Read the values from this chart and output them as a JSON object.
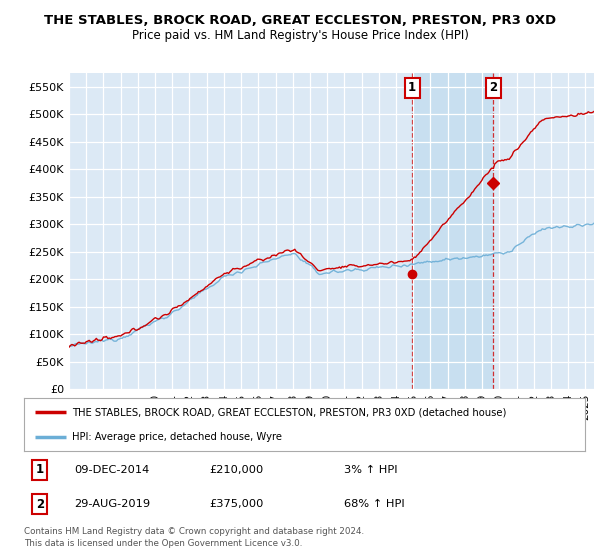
{
  "title": "THE STABLES, BROCK ROAD, GREAT ECCLESTON, PRESTON, PR3 0XD",
  "subtitle": "Price paid vs. HM Land Registry's House Price Index (HPI)",
  "red_label": "THE STABLES, BROCK ROAD, GREAT ECCLESTON, PRESTON, PR3 0XD (detached house)",
  "blue_label": "HPI: Average price, detached house, Wyre",
  "annotation1_date": "09-DEC-2014",
  "annotation1_price": "£210,000",
  "annotation1_hpi": "3% ↑ HPI",
  "annotation2_date": "29-AUG-2019",
  "annotation2_price": "£375,000",
  "annotation2_hpi": "68% ↑ HPI",
  "footer1": "Contains HM Land Registry data © Crown copyright and database right 2024.",
  "footer2": "This data is licensed under the Open Government Licence v3.0.",
  "ylim": [
    0,
    575000
  ],
  "yticks": [
    0,
    50000,
    100000,
    150000,
    200000,
    250000,
    300000,
    350000,
    400000,
    450000,
    500000,
    550000
  ],
  "xlim_start": 1995.0,
  "xlim_end": 2025.5,
  "background_color": "#dce9f5",
  "highlight_color": "#c8dff0",
  "red_color": "#cc0000",
  "blue_color": "#6baed6",
  "point1_x": 2014.94,
  "point1_y": 210000,
  "point2_x": 2019.66,
  "point2_y": 375000
}
